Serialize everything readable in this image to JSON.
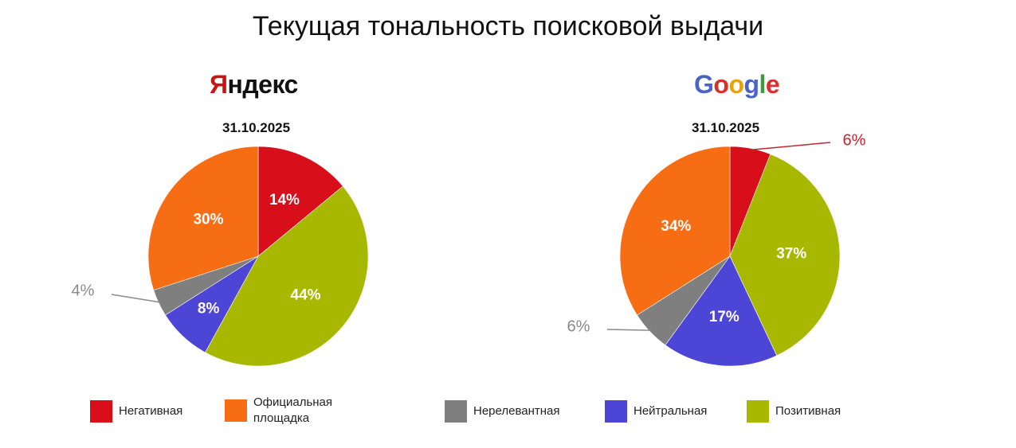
{
  "title": "Текущая тональность поисковой выдачи",
  "colors": {
    "negative": "#d80f1a",
    "official": "#f76d14",
    "irrelevant": "#7f7f7f",
    "neutral": "#4d45d6",
    "positive": "#a8b800",
    "yandex_red": "#cc1212",
    "dark_text": "#111111",
    "outside_label": "#8a8a8a"
  },
  "legend": [
    {
      "label": "Негативная",
      "color": "#d80f1a"
    },
    {
      "label": "Официальная площадка",
      "color": "#f76d14"
    },
    {
      "label": "Нерелевантная",
      "color": "#7f7f7f"
    },
    {
      "label": "Нейтральная",
      "color": "#4d45d6"
    },
    {
      "label": "Позитивная",
      "color": "#a8b800"
    }
  ],
  "chart_data": [
    {
      "type": "pie",
      "brand": "Яндекс",
      "brand_letters": [
        {
          "text": "Я",
          "color": "#cc1212"
        },
        {
          "text": "ндекс",
          "color": "#111111"
        }
      ],
      "subtitle": "31.10.2025",
      "slices": [
        {
          "label": "Негативная",
          "value": 14,
          "display": "14%",
          "color": "#d80f1a"
        },
        {
          "label": "Позитивная",
          "value": 44,
          "display": "44%",
          "color": "#a8b800"
        },
        {
          "label": "Нейтральная",
          "value": 8,
          "display": "8%",
          "color": "#4d45d6"
        },
        {
          "label": "Нерелевантная",
          "value": 4,
          "display": "4%",
          "color": "#7f7f7f",
          "label_outside": true,
          "outside_color": "#8a8a8a"
        },
        {
          "label": "Официальная площадка",
          "value": 30,
          "display": "30%",
          "color": "#f76d14"
        }
      ]
    },
    {
      "type": "pie",
      "brand": "Google",
      "brand_letters": [
        {
          "text": "G",
          "color": "#4a63c8"
        },
        {
          "text": "o",
          "color": "#d8302b"
        },
        {
          "text": "o",
          "color": "#e3a20f"
        },
        {
          "text": "g",
          "color": "#4a63c8"
        },
        {
          "text": "l",
          "color": "#3c9a3c"
        },
        {
          "text": "e",
          "color": "#d8302b"
        }
      ],
      "subtitle": "31.10.2025",
      "slices": [
        {
          "label": "Негативная",
          "value": 6,
          "display": "6%",
          "color": "#d80f1a",
          "label_outside": true,
          "outside_color": "#c0272d"
        },
        {
          "label": "Позитивная",
          "value": 37,
          "display": "37%",
          "color": "#a8b800"
        },
        {
          "label": "Нейтральная",
          "value": 17,
          "display": "17%",
          "color": "#4d45d6"
        },
        {
          "label": "Нерелевантная",
          "value": 6,
          "display": "6%",
          "color": "#7f7f7f",
          "label_outside": true,
          "outside_color": "#8a8a8a"
        },
        {
          "label": "Официальная площадка",
          "value": 34,
          "display": "34%",
          "color": "#f76d14"
        }
      ]
    }
  ]
}
